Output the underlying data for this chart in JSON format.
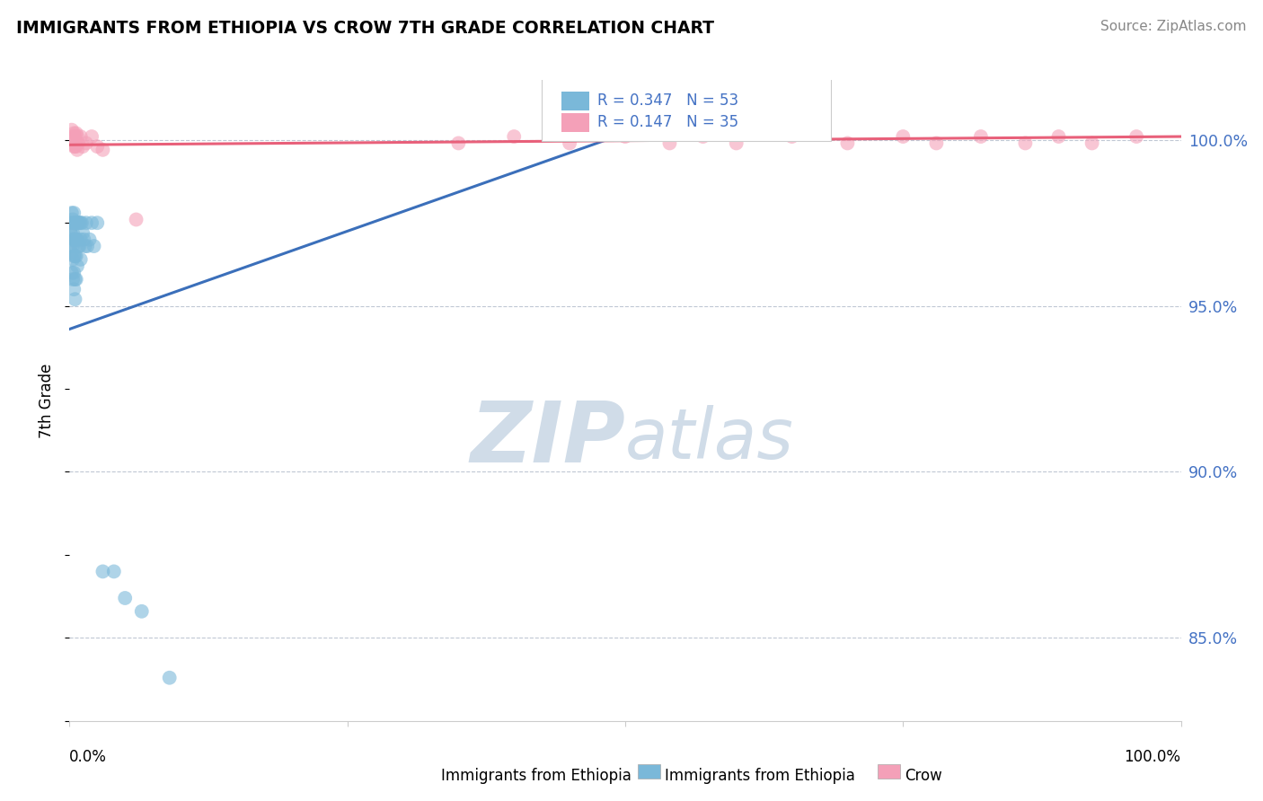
{
  "title": "IMMIGRANTS FROM ETHIOPIA VS CROW 7TH GRADE CORRELATION CHART",
  "source": "Source: ZipAtlas.com",
  "ylabel": "7th Grade",
  "legend_blue_label": "Immigrants from Ethiopia",
  "legend_pink_label": "Crow",
  "R_blue": 0.347,
  "N_blue": 53,
  "R_pink": 0.147,
  "N_pink": 35,
  "blue_color": "#7ab8d9",
  "pink_color": "#f4a0b8",
  "blue_line_color": "#3b6fba",
  "pink_line_color": "#e8607a",
  "ytick_labels": [
    "85.0%",
    "90.0%",
    "95.0%",
    "100.0%"
  ],
  "ytick_values": [
    0.85,
    0.9,
    0.95,
    1.0
  ],
  "xlim": [
    0.0,
    1.0
  ],
  "ylim": [
    0.825,
    1.018
  ],
  "blue_scatter_x": [
    0.001,
    0.001,
    0.001,
    0.002,
    0.002,
    0.002,
    0.002,
    0.002,
    0.003,
    0.003,
    0.003,
    0.003,
    0.003,
    0.004,
    0.004,
    0.004,
    0.004,
    0.004,
    0.004,
    0.005,
    0.005,
    0.005,
    0.005,
    0.005,
    0.006,
    0.006,
    0.006,
    0.006,
    0.007,
    0.007,
    0.007,
    0.008,
    0.008,
    0.009,
    0.009,
    0.01,
    0.01,
    0.01,
    0.011,
    0.012,
    0.013,
    0.014,
    0.015,
    0.016,
    0.018,
    0.02,
    0.022,
    0.025,
    0.03,
    0.04,
    0.05,
    0.065,
    0.09
  ],
  "blue_scatter_y": [
    0.975,
    0.972,
    0.968,
    0.978,
    0.974,
    0.97,
    0.966,
    0.96,
    0.976,
    0.972,
    0.968,
    0.964,
    0.958,
    0.978,
    0.975,
    0.97,
    0.965,
    0.96,
    0.955,
    0.975,
    0.97,
    0.965,
    0.958,
    0.952,
    0.975,
    0.97,
    0.965,
    0.958,
    0.975,
    0.97,
    0.962,
    0.975,
    0.968,
    0.975,
    0.968,
    0.975,
    0.97,
    0.964,
    0.975,
    0.972,
    0.97,
    0.968,
    0.975,
    0.968,
    0.97,
    0.975,
    0.968,
    0.975,
    0.87,
    0.87,
    0.862,
    0.858,
    0.838
  ],
  "pink_scatter_x": [
    0.002,
    0.003,
    0.003,
    0.004,
    0.004,
    0.005,
    0.005,
    0.006,
    0.006,
    0.007,
    0.007,
    0.008,
    0.01,
    0.012,
    0.015,
    0.02,
    0.025,
    0.03,
    0.06,
    0.35,
    0.4,
    0.45,
    0.5,
    0.54,
    0.57,
    0.6,
    0.65,
    0.7,
    0.75,
    0.78,
    0.82,
    0.86,
    0.89,
    0.92,
    0.96
  ],
  "pink_scatter_y": [
    1.003,
    1.001,
    0.999,
    1.002,
    0.998,
    1.001,
    0.998,
    1.002,
    0.998,
    1.001,
    0.997,
    0.999,
    1.001,
    0.998,
    0.999,
    1.001,
    0.998,
    0.997,
    0.976,
    0.999,
    1.001,
    0.999,
    1.001,
    0.999,
    1.001,
    0.999,
    1.001,
    0.999,
    1.001,
    0.999,
    1.001,
    0.999,
    1.001,
    0.999,
    1.001
  ],
  "blue_trendline_x": [
    0.0,
    0.5
  ],
  "blue_trendline_y": [
    0.943,
    1.002
  ],
  "pink_trendline_x": [
    0.0,
    1.0
  ],
  "pink_trendline_y": [
    0.9985,
    1.001
  ],
  "watermark_zip": "ZIP",
  "watermark_atlas": "atlas",
  "watermark_color": "#d0dce8"
}
